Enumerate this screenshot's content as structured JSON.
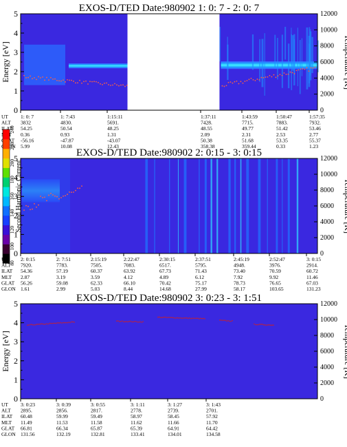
{
  "chart_data": [
    {
      "type": "heatmap",
      "title": "EXOS-D/TED   Date:980902  1: 0: 7 - 2: 0: 7",
      "ylabel": "Energy [eV]",
      "ylabel2": "Temperature [K]",
      "ylim": [
        0,
        5
      ],
      "ylim2": [
        0,
        12000
      ],
      "y_ticks": [
        "0",
        "1",
        "2",
        "3",
        "4",
        "5"
      ],
      "y2_ticks": [
        "0",
        "2000",
        "4000",
        "6000",
        "8000",
        "10000",
        "12000"
      ],
      "data_gaps": [
        [
          0.36,
          0.67
        ]
      ],
      "bright_band_energy": [
        2.1,
        2.5
      ],
      "temperature_trace": "from ~4200 K at start, ~3000 K before the gap, rising to ~5300 K at end",
      "table": {
        "row_labels": [
          "UT",
          "ALT",
          "ILAT",
          "MLT",
          "GLAT",
          "GLON"
        ],
        "columns": [
          [
            "1: 0: 7",
            "3832",
            "54.25",
            "0.36",
            "-56.16",
            "5.99"
          ],
          [
            "1: 7:43",
            "4830.",
            "50.54",
            "0.93",
            "-47.87",
            "10.08"
          ],
          [
            "1:15:11",
            "5691.",
            "48.25",
            "1.31",
            "-43.07",
            "12.43"
          ],
          [
            "1:37:11",
            "7428.",
            "48.55",
            "2.09",
            "50.38",
            "358.38"
          ],
          [
            "1:43:59",
            "7715.",
            "49.77",
            "2.31",
            "51.68",
            "359.44"
          ],
          [
            "1:50:47",
            "7883.",
            "51.42",
            "2.53",
            "53.35",
            "0.33"
          ],
          [
            "1:57:35",
            "7932.",
            "53.46",
            "2.77",
            "55.37",
            "1.23"
          ]
        ]
      }
    },
    {
      "type": "heatmap",
      "title": "EXOS-D/TED   Date:980902  2: 0:15 - 3: 0:15",
      "ylabel": "Energy [eV]",
      "ylabel2": "Temperature [K]",
      "ylim": [
        0,
        5
      ],
      "ylim2": [
        0,
        12000
      ],
      "y_ticks": [
        "0",
        "1",
        "2",
        "3",
        "4",
        "5"
      ],
      "y2_ticks": [
        "0",
        "2000",
        "4000",
        "6000",
        "8000",
        "10000",
        "12000"
      ],
      "colorbar": {
        "label": "Second Harmonic Current",
        "ticks": [
          "80",
          "100",
          "120",
          "140",
          "160",
          "180",
          "200",
          "220",
          "240"
        ],
        "colors": [
          "#000000",
          "#3a0030",
          "#6a00a8",
          "#3a10d8",
          "#1840ff",
          "#1070ff",
          "#00b8ff",
          "#00e8e0",
          "#00d070",
          "#60e000",
          "#e0e000",
          "#ffb000",
          "#ff4000",
          "#ff0000"
        ]
      },
      "bright_patch_energy": [
        3.0,
        3.6
      ],
      "table": {
        "row_labels": [
          "UT",
          "ALT",
          "ILAT",
          "MLT",
          "GLAT",
          "GLON"
        ],
        "columns": [
          [
            "2: 0:15",
            "7920.",
            "54.36",
            "2.87",
            "56.26",
            "1.61"
          ],
          [
            "2: 7:51",
            "7783.",
            "57.19",
            "3.19",
            "59.08",
            "2.99"
          ],
          [
            "2:15:19",
            "7505.",
            "60.37",
            "3.59",
            "62.33",
            "5.03"
          ],
          [
            "2:22:47",
            "7083.",
            "63.92",
            "4.12",
            "66.10",
            "8.44"
          ],
          [
            "2:30:15",
            "6517.",
            "67.73",
            "4.89",
            "70.42",
            "14.68"
          ],
          [
            "2:37:51",
            "5795.",
            "71.43",
            "6.12",
            "75.17",
            "27.99"
          ],
          [
            "2:45:19",
            "4948.",
            "73.40",
            "7.92",
            "78.73",
            "58.17"
          ],
          [
            "2:52:47",
            "3976.",
            "70.59",
            "9.92",
            "76.65",
            "103.65"
          ],
          [
            "3: 0:15",
            "2914.",
            "60.72",
            "11.46",
            "67.03",
            "131.23"
          ]
        ]
      }
    },
    {
      "type": "heatmap",
      "title": "EXOS-D/TED   Date:980902  3: 0:23 - 3: 1:51",
      "ylabel": "Energy [eV]",
      "ylabel2": "Temperature [K]",
      "ylim": [
        0,
        5
      ],
      "ylim2": [
        0,
        12000
      ],
      "y_ticks": [
        "0",
        "1",
        "2",
        "3",
        "4",
        "5"
      ],
      "y2_ticks": [
        "0",
        "2000",
        "4000",
        "6000",
        "8000",
        "10000",
        "12000"
      ],
      "temperature_trace": "near 9300-10300 K",
      "table": {
        "row_labels": [
          "UT",
          "ALT",
          "ILAT",
          "MLT",
          "GLAT",
          "GLON"
        ],
        "columns": [
          [
            "3: 0:23",
            "2895.",
            "60.48",
            "11.49",
            "66.81",
            "131.56"
          ],
          [
            "3: 0:39",
            "2856.",
            "59.99",
            "11.53",
            "66.34",
            "132.19"
          ],
          [
            "3: 0:55",
            "2817.",
            "59.49",
            "11.58",
            "65.87",
            "132.81"
          ],
          [
            "3: 1:11",
            "2778.",
            "58.97",
            "11.62",
            "65.39",
            "133.41"
          ],
          [
            "3: 1:27",
            "2739.",
            "58.45",
            "11.66",
            "64.91",
            "134.01"
          ],
          [
            "3: 1:43",
            "2701.",
            "57.92",
            "11.70",
            "64.42",
            "134.58"
          ]
        ]
      }
    }
  ]
}
